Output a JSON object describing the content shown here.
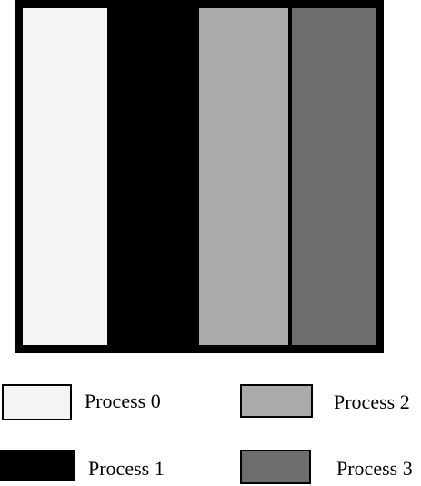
{
  "processes": [
    {
      "label": "Process 0",
      "color": "#f4f4f4"
    },
    {
      "label": "Process 1",
      "color": "#000000"
    },
    {
      "label": "Process 2",
      "color": "#aaaaaa"
    },
    {
      "label": "Process 3",
      "color": "#6d6d6d"
    }
  ]
}
